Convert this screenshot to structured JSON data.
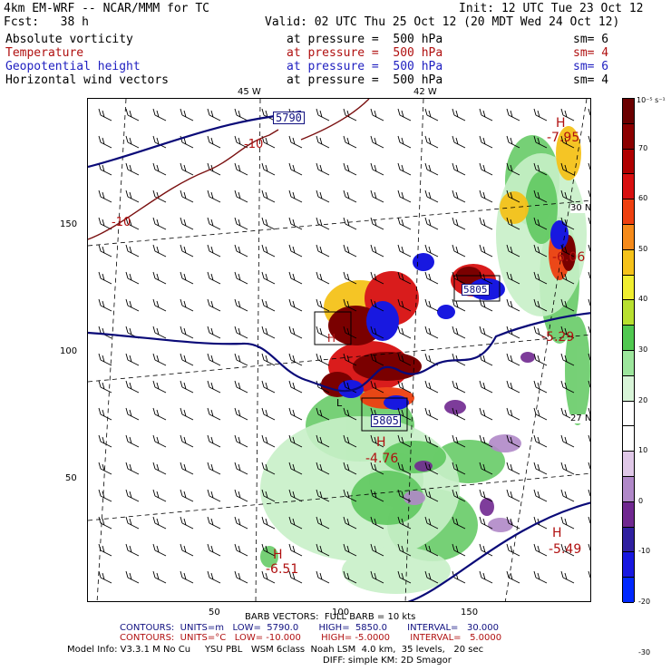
{
  "header": {
    "model": "4km EM-WRF -- NCAR/MMM for TC",
    "init": "Init: 12 UTC Tue 23 Oct 12",
    "fcst": "Fcst:   38 h",
    "valid": "Valid: 02 UTC Thu 25 Oct 12 (20 MDT Wed 24 Oct 12)"
  },
  "fields": [
    {
      "name": "Absolute vorticity",
      "level": "at pressure =  500 hPa",
      "sm": "sm= 6",
      "color": "#000000"
    },
    {
      "name": "Temperature",
      "level": "at pressure =  500 hPa",
      "sm": "sm= 4",
      "color": "#b01010"
    },
    {
      "name": "Geopotential height",
      "level": "at pressure =  500 hPa",
      "sm": "sm= 6",
      "color": "#1f1fc0"
    },
    {
      "name": "Horizontal wind vectors",
      "level": "at pressure =  500 hPa",
      "sm": "sm= 4",
      "color": "#000000"
    }
  ],
  "map": {
    "lon_labels": [
      "45 W",
      "42 W"
    ],
    "lat_labels": [
      "30 N",
      "27 N"
    ],
    "y_ticks": [
      "150",
      "100",
      "50"
    ],
    "x_ticks": [
      "50",
      "100",
      "150"
    ],
    "contour_labels": [
      {
        "text": "5790",
        "color": "#101080",
        "boxed": true
      },
      {
        "text": "-10",
        "color": "#b01010"
      },
      {
        "text": "-10",
        "color": "#b01010"
      },
      {
        "text": "-7.95",
        "color": "#b01010"
      },
      {
        "text": "-6.06",
        "color": "#b01010"
      },
      {
        "text": "5805",
        "color": "#101080",
        "boxed": true
      },
      {
        "text": "-5.29",
        "color": "#b01010"
      },
      {
        "text": "5805",
        "color": "#101080",
        "boxed": true
      },
      {
        "text": "-4.76",
        "color": "#b01010"
      },
      {
        "text": "-5.49",
        "color": "#b01010"
      },
      {
        "text": "-6.51",
        "color": "#b01010"
      }
    ],
    "highs": [
      "H",
      "H",
      "H",
      "H",
      "H"
    ],
    "lows": [
      "L"
    ]
  },
  "colorbar": {
    "unit": "10⁻⁵ s⁻¹",
    "labels": [
      "70",
      "60",
      "50",
      "40",
      "30",
      "20",
      "10",
      "0",
      "-10",
      "-20",
      "-30"
    ],
    "colors": [
      "#6b0000",
      "#8c0000",
      "#b00000",
      "#d81010",
      "#ee4010",
      "#f58a1a",
      "#f5c21a",
      "#f0ee30",
      "#b8e030",
      "#50c850",
      "#9ce69c",
      "#d8f5d8",
      "#ffffff",
      "#ffffff",
      "#e0c8e8",
      "#b088c8",
      "#702890",
      "#3020a0",
      "#1818e0",
      "#0028ff"
    ]
  },
  "footer": {
    "barb": "BARB VECTORS:  FULL BARB = 10 kts",
    "contours1": "CONTOURS:  UNITS=m   LOW=  5790.0       HIGH=  5850.0       INTERVAL=   30.000",
    "contours2": "CONTOURS:  UNITS=°C   LOW= -10.000       HIGH= -5.0000       INTERVAL=   5.0000",
    "model_info": "Model Info: V3.3.1 M No Cu     YSU PBL   WSM 6class  Noah LSM  4.0 km,  35 levels,   20 sec",
    "model_info2": "DIFF: simple KM: 2D Smagor"
  }
}
